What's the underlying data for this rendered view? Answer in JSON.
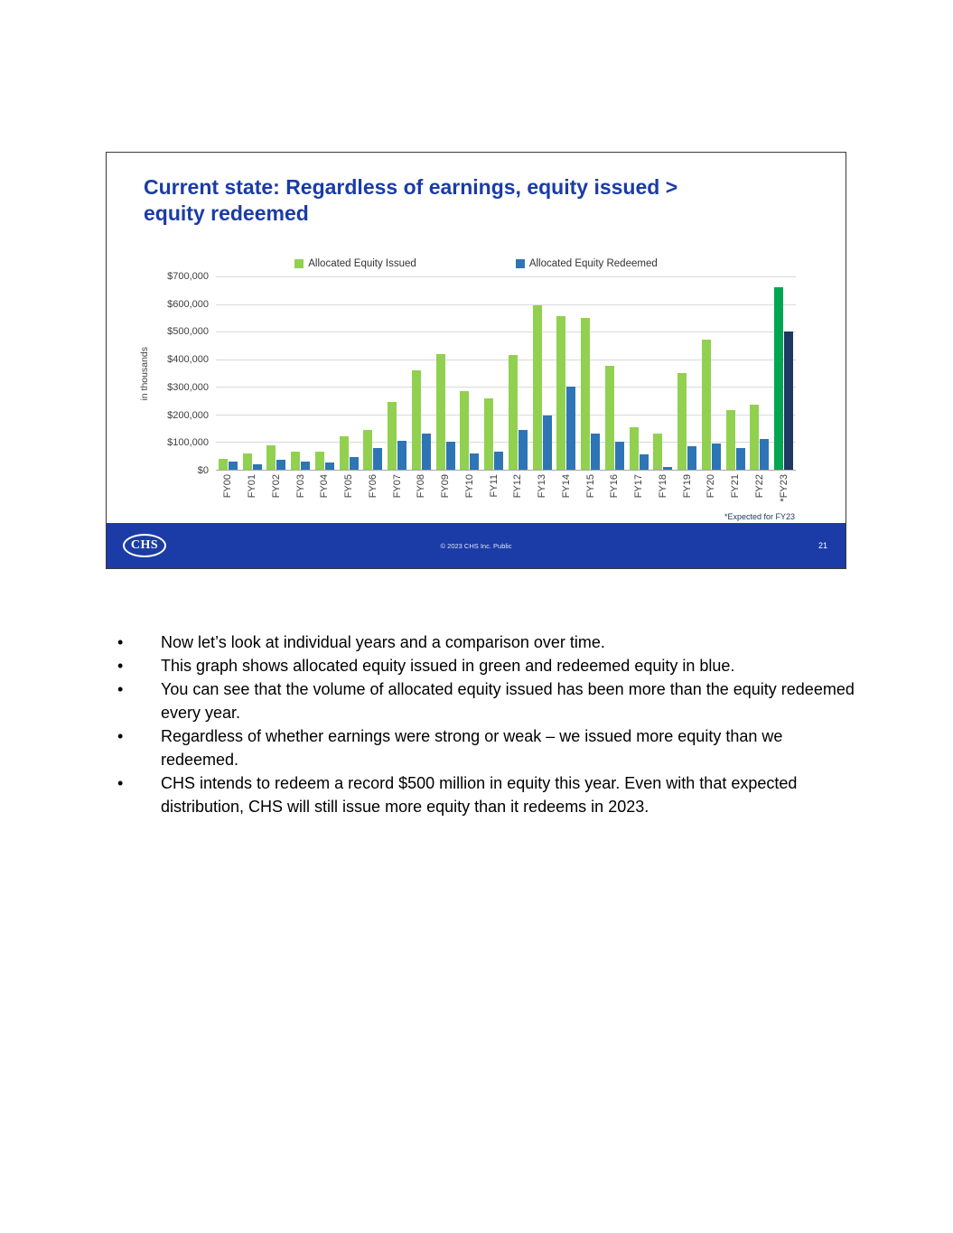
{
  "slide": {
    "title": "Current state: Regardless of earnings, equity issued >\nequity redeemed",
    "footnote": "*Expected for FY23",
    "footer": {
      "logo": "CHS",
      "copyright": "© 2023 CHS Inc. Public",
      "page_number": "21"
    }
  },
  "chart_data": {
    "type": "bar",
    "title": "",
    "xlabel": "",
    "ylabel": "in thousands",
    "ylim": [
      0,
      700000
    ],
    "ytick_step": 100000,
    "ytick_labels": [
      "$0",
      "$100,000",
      "$200,000",
      "$300,000",
      "$400,000",
      "$500,000",
      "$600,000",
      "$700,000"
    ],
    "grid": "horizontal",
    "legend_position": "top",
    "highlight_category": "*FY23",
    "categories": [
      "FY00",
      "FY01",
      "FY02",
      "FY03",
      "FY04",
      "FY05",
      "FY06",
      "FY07",
      "FY08",
      "FY09",
      "FY10",
      "FY11",
      "FY12",
      "FY13",
      "FY14",
      "FY15",
      "FY16",
      "FY17",
      "FY18",
      "FY19",
      "FY20",
      "FY21",
      "FY22",
      "*FY23"
    ],
    "series": [
      {
        "name": "Allocated Equity Issued",
        "color": "#92d050",
        "highlight_color": "#00a651",
        "values": [
          40000,
          60000,
          90000,
          65000,
          65000,
          120000,
          145000,
          245000,
          360000,
          420000,
          285000,
          260000,
          415000,
          595000,
          555000,
          550000,
          375000,
          155000,
          130000,
          350000,
          470000,
          215000,
          235000,
          660000
        ]
      },
      {
        "name": "Allocated Equity Redeemed",
        "color": "#2e75b6",
        "highlight_color": "#1f3864",
        "values": [
          30000,
          20000,
          35000,
          30000,
          25000,
          45000,
          80000,
          105000,
          130000,
          100000,
          60000,
          65000,
          145000,
          195000,
          300000,
          130000,
          100000,
          55000,
          10000,
          85000,
          95000,
          80000,
          110000,
          500000
        ]
      }
    ]
  },
  "notes": {
    "bullets": [
      "Now let’s look at individual years and a comparison over time.",
      "This graph shows allocated equity issued in green and redeemed equity in blue.",
      "You can see that the volume of allocated equity issued has been more than the equity redeemed every year.",
      "Regardless of whether earnings were strong or weak – we issued more equity than we redeemed.",
      "CHS intends to redeem a record $500 million in equity this year. Even with that expected distribution, CHS will still issue more equity than it redeems in 2023."
    ]
  }
}
